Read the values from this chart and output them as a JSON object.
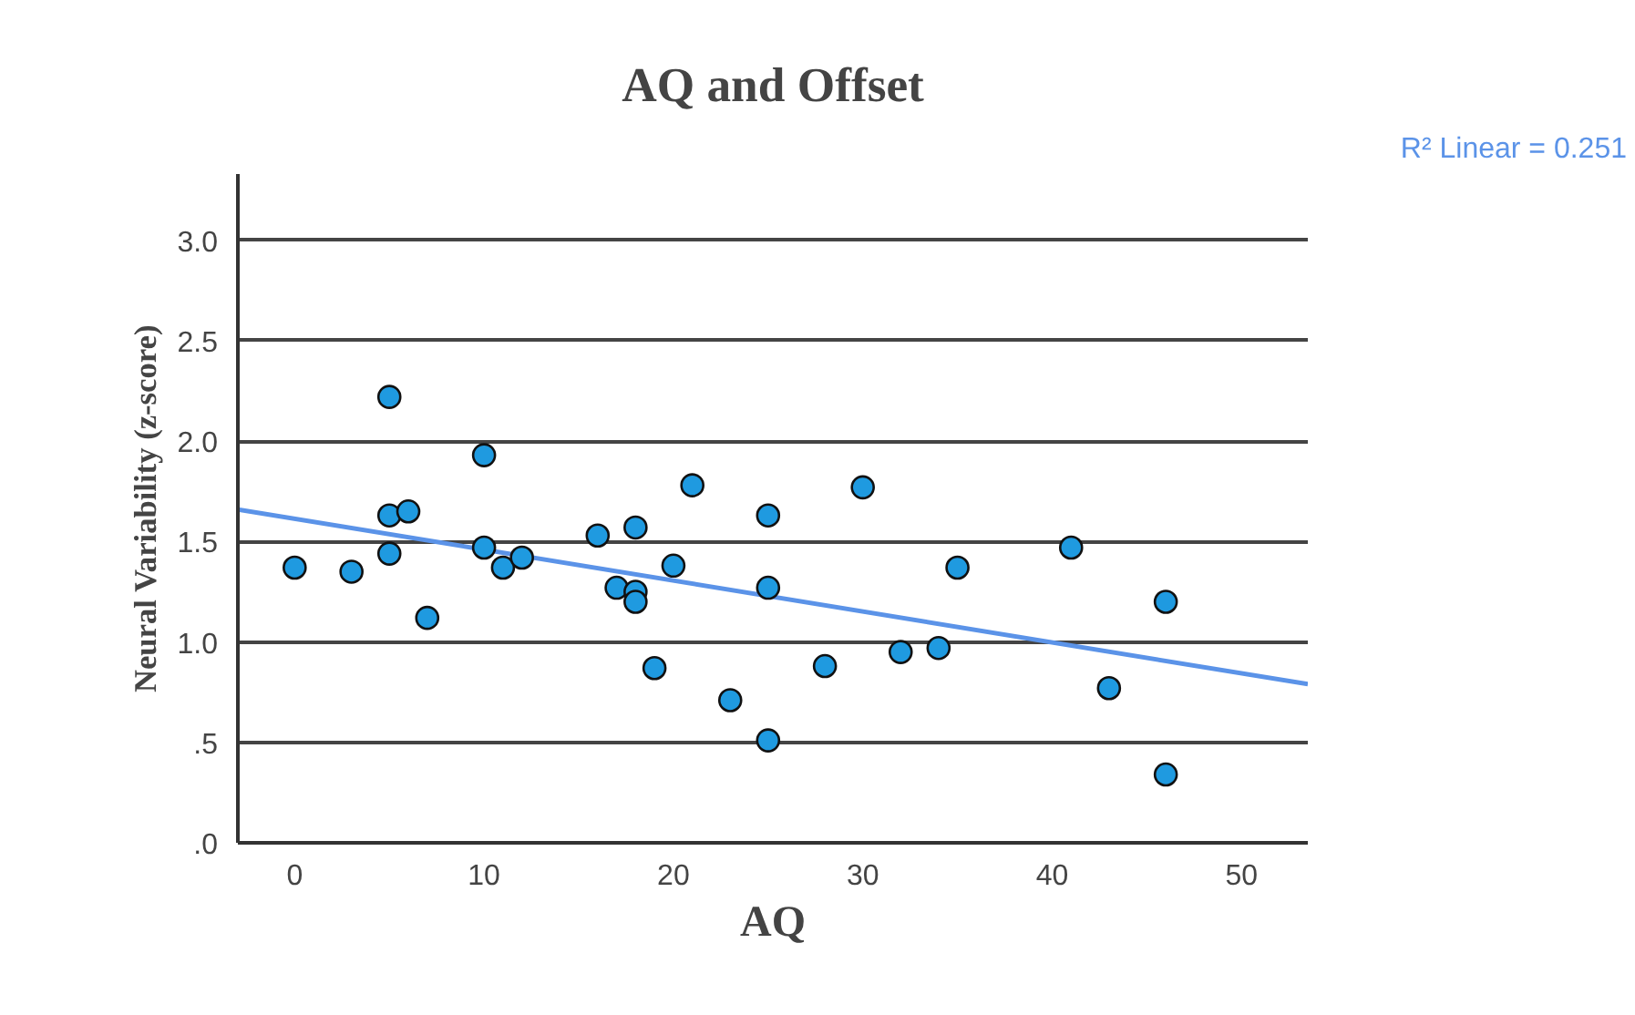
{
  "chart_data": {
    "type": "scatter",
    "title": "AQ and Offset",
    "xlabel": "AQ",
    "ylabel": "Neural Variability (z-score)",
    "xlim": [
      -3,
      53.5
    ],
    "xticks": [
      0,
      10,
      20,
      30,
      40,
      50
    ],
    "ylim": [
      0,
      3.33
    ],
    "yticks": [
      {
        "value": 0,
        "label": ".0"
      },
      {
        "value": 0.5,
        "label": ".5"
      },
      {
        "value": 1,
        "label": "1.0"
      },
      {
        "value": 1.5,
        "label": "1.5"
      },
      {
        "value": 2,
        "label": "2.0"
      },
      {
        "value": 2.5,
        "label": "2.5"
      },
      {
        "value": 3,
        "label": "3.0"
      }
    ],
    "grid": "y",
    "series": [
      {
        "color": "#1f9ae0",
        "marker": "circle",
        "x": [
          0,
          3,
          5,
          5,
          5,
          6,
          7,
          10,
          10,
          11,
          12,
          16,
          17,
          18,
          18,
          18,
          19,
          20,
          21,
          23,
          25,
          25,
          25,
          28,
          30,
          32,
          34,
          35,
          41,
          43,
          46,
          46
        ],
        "values": [
          1.37,
          1.35,
          2.22,
          1.63,
          1.44,
          1.65,
          1.12,
          1.93,
          1.47,
          1.37,
          1.42,
          1.53,
          1.27,
          1.57,
          1.25,
          1.2,
          0.87,
          1.38,
          1.78,
          0.71,
          1.63,
          1.27,
          0.51,
          0.88,
          1.77,
          0.95,
          0.97,
          1.37,
          1.47,
          0.77,
          1.2,
          0.34
        ]
      },
      {
        "type": "line",
        "name": "R² Linear = 0.251",
        "color": "#5b93e8",
        "x": [
          -3,
          53.5
        ],
        "values": [
          1.66,
          0.79
        ]
      }
    ]
  }
}
